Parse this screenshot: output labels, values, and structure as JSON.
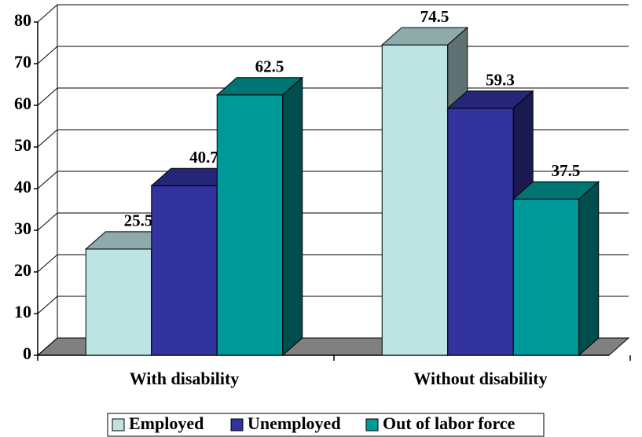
{
  "chart_data": {
    "type": "bar3d",
    "categories": [
      "With disability",
      "Without disability"
    ],
    "series": [
      {
        "name": "Employed",
        "color": "#bde3e3",
        "values": [
          25.5,
          74.5
        ]
      },
      {
        "name": "Unemployed",
        "color": "#3333a0",
        "values": [
          40.7,
          59.3
        ]
      },
      {
        "name": "Out of labor force",
        "color": "#009999",
        "values": [
          62.5,
          37.5
        ]
      }
    ],
    "ylim": [
      0,
      80
    ],
    "yticks": [
      0,
      10,
      20,
      30,
      40,
      50,
      60,
      70,
      80
    ],
    "grid": true,
    "legend": "bottom"
  }
}
